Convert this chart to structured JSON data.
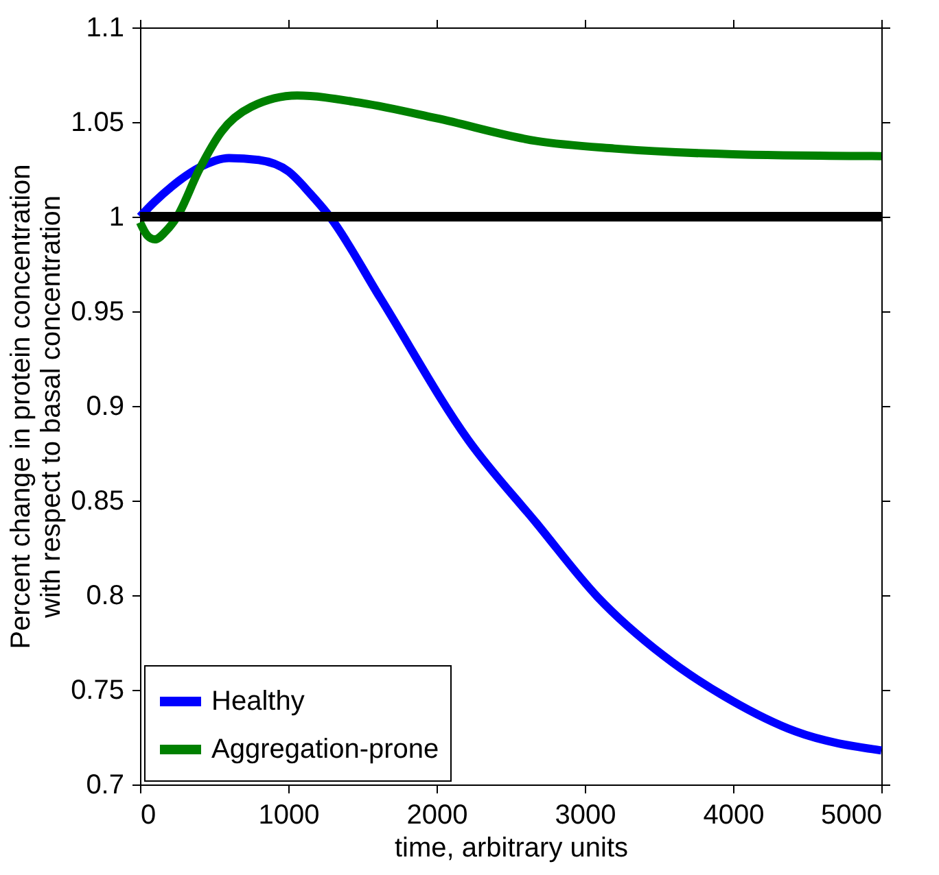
{
  "chart_data": {
    "type": "line",
    "xlabel": "time, arbitrary units",
    "ylabel": "Percent change in protein concentration\nwith respect to basal concentration",
    "xlim": [
      0,
      5000
    ],
    "ylim": [
      0.7,
      1.1
    ],
    "xticks": [
      0,
      1000,
      2000,
      3000,
      4000,
      5000
    ],
    "yticks": [
      0.7,
      0.75,
      0.8,
      0.85,
      0.9,
      0.95,
      1,
      1.05,
      1.1
    ],
    "grid": false,
    "legend": "bottom left",
    "marker": "none",
    "line_style": "solid",
    "ref_lines": [
      {
        "axis": "y",
        "value": 1,
        "color": "#000000"
      }
    ],
    "series": [
      {
        "name": "Healthy",
        "color": "#0000ff",
        "x": [
          0,
          100,
          215,
          400,
          600,
          800,
          1000,
          1150,
          1280,
          1621,
          2214,
          2675,
          3087,
          3532,
          3976,
          4422,
          5000
        ],
        "values": [
          1.0,
          1.008,
          1.016,
          1.026,
          1.031,
          1.03,
          1.024,
          1.012,
          1.0,
          0.957,
          0.882,
          0.838,
          0.799,
          0.768,
          0.745,
          0.728,
          0.718
        ]
      },
      {
        "name": "Aggregation-prone",
        "color": "#008000",
        "x": [
          0,
          50,
          100,
          170,
          250,
          400,
          550,
          750,
          1060,
          1500,
          2000,
          2675,
          3200,
          4000,
          5000
        ],
        "values": [
          0.997,
          0.99,
          0.988,
          0.992,
          1.0,
          1.025,
          1.045,
          1.058,
          1.064,
          1.06,
          1.052,
          1.04,
          1.036,
          1.033,
          1.032
        ]
      }
    ]
  }
}
